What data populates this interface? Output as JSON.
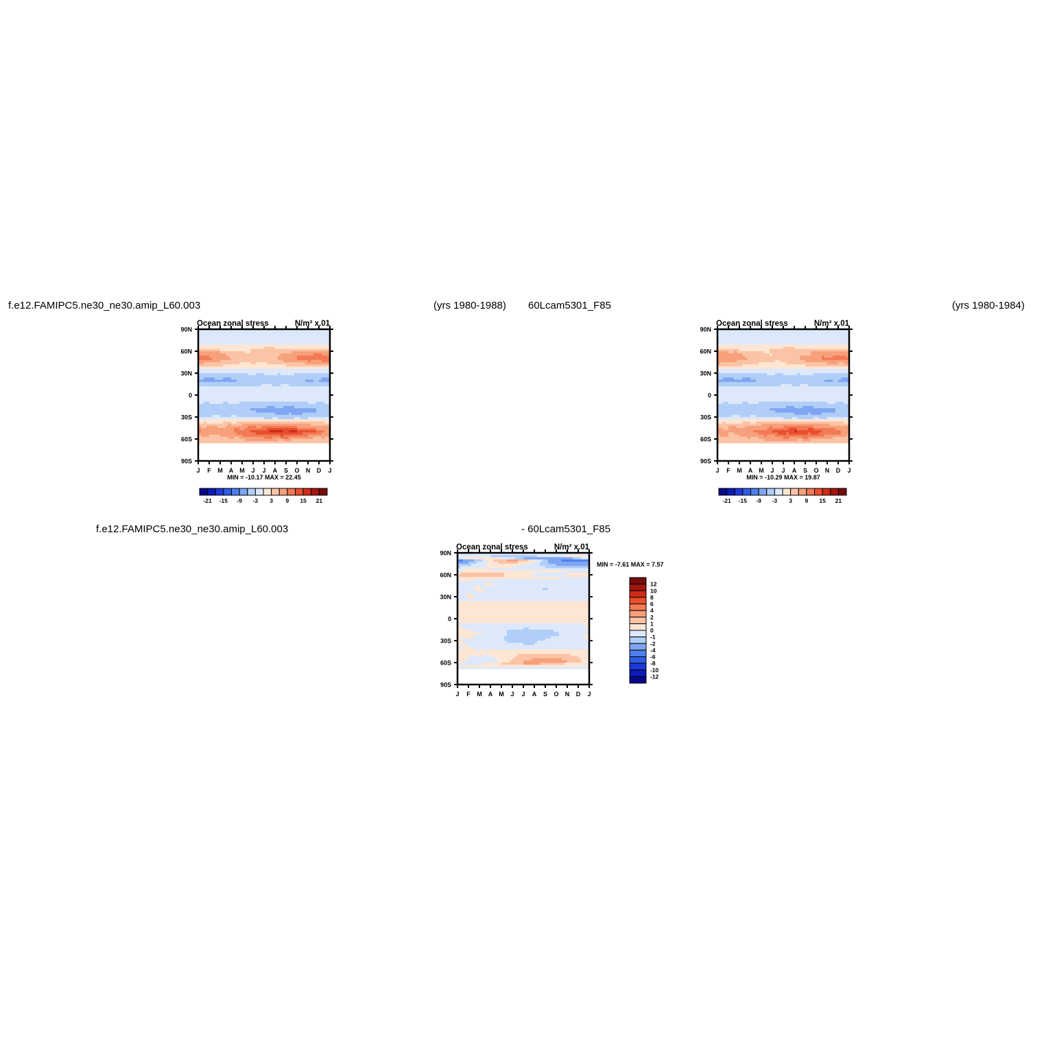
{
  "headers": {
    "left_case": "f.e12.FAMIPC5.ne30_ne30.amip_L60.003",
    "left_years": "(yrs 1980-1988)",
    "right_case": "60Lcam5301_F85",
    "right_years": "(yrs 1980-1984)",
    "diff_left": "f.e12.FAMIPC5.ne30_ne30.amip_L60.003",
    "diff_right": "- 60Lcam5301_F85"
  },
  "palette": {
    "diverging": [
      "#08088c",
      "#0b1bb8",
      "#1d39d9",
      "#2f5ce6",
      "#4f7eed",
      "#7ea6f2",
      "#b0cef7",
      "#dde9fb",
      "#fde6d4",
      "#fbc4a6",
      "#f7a07c",
      "#f27a54",
      "#e94f2d",
      "#cf2a17",
      "#a61510",
      "#760c0c"
    ]
  },
  "chart_data": [
    {
      "type": "heatmap",
      "title": "Ocean zonal stress",
      "units": "N/m² x.01",
      "x_tick_labels": [
        "J",
        "F",
        "M",
        "A",
        "M",
        "J",
        "J",
        "A",
        "S",
        "O",
        "N",
        "D",
        "J"
      ],
      "y_tick_labels": [
        "90N",
        "60N",
        "30N",
        "0",
        "30S",
        "60S",
        "90S"
      ],
      "ylim": [
        -90,
        90
      ],
      "min": -10.17,
      "max": 22.45,
      "stats_text": "MIN = -10.17 MAX = 22.45",
      "colorbar_levels": [
        -21,
        -18,
        -15,
        -12,
        -9,
        -6,
        -3,
        0,
        3,
        6,
        9,
        12,
        15,
        18,
        21
      ],
      "colorbar_labels": [
        "-21",
        "-15",
        "-9",
        "-3",
        "3",
        "9",
        "15",
        "21"
      ],
      "colorbar_orientation": "horizontal",
      "field": {
        "lats": [
          -90,
          -80,
          -70,
          -60,
          -50,
          -40,
          -30,
          -20,
          -10,
          0,
          10,
          20,
          30,
          40,
          50,
          60,
          70,
          80,
          90
        ],
        "amplitude": [
          0,
          0,
          2,
          6,
          12,
          6,
          -4,
          -6,
          -3,
          0,
          -2,
          -6,
          -3,
          3,
          8,
          5,
          -1,
          -1,
          0
        ],
        "annual_mod": [
          0,
          0,
          0,
          0.3,
          0.35,
          0.2,
          0.3,
          0.3,
          0.1,
          0,
          0.1,
          0.2,
          0.2,
          0.4,
          0.45,
          0.4,
          0.2,
          0,
          0
        ],
        "peak_month": [
          0,
          0,
          0,
          7,
          7.5,
          7,
          8,
          8,
          7,
          0,
          1,
          1,
          1,
          11,
          11,
          11,
          1,
          0,
          0
        ],
        "missing_south_of": -66
      }
    },
    {
      "type": "heatmap",
      "title": "Ocean zonal stress",
      "units": "N/m² x.01",
      "x_tick_labels": [
        "J",
        "F",
        "M",
        "A",
        "M",
        "J",
        "J",
        "A",
        "S",
        "O",
        "N",
        "D",
        "J"
      ],
      "y_tick_labels": [
        "90N",
        "60N",
        "30N",
        "0",
        "30S",
        "60S",
        "90S"
      ],
      "ylim": [
        -90,
        90
      ],
      "min": -10.29,
      "max": 19.87,
      "stats_text": "MIN = -10.29 MAX = 19.87",
      "colorbar_levels": [
        -21,
        -18,
        -15,
        -12,
        -9,
        -6,
        -3,
        0,
        3,
        6,
        9,
        12,
        15,
        18,
        21
      ],
      "colorbar_labels": [
        "-21",
        "-15",
        "-9",
        "-3",
        "3",
        "9",
        "15",
        "21"
      ],
      "colorbar_orientation": "horizontal",
      "field": {
        "lats": [
          -90,
          -80,
          -70,
          -60,
          -50,
          -40,
          -30,
          -20,
          -10,
          0,
          10,
          20,
          30,
          40,
          50,
          60,
          70,
          80,
          90
        ],
        "amplitude": [
          0,
          0,
          2,
          6,
          11,
          6,
          -4,
          -6,
          -3,
          0,
          -2,
          -6,
          -3,
          3,
          7,
          5,
          -1,
          -1,
          0
        ],
        "annual_mod": [
          0,
          0,
          0,
          0.3,
          0.35,
          0.2,
          0.3,
          0.3,
          0.1,
          0,
          0.1,
          0.2,
          0.2,
          0.4,
          0.45,
          0.4,
          0.2,
          0,
          0
        ],
        "peak_month": [
          0,
          0,
          0,
          7,
          7.5,
          7,
          8,
          8,
          7,
          0,
          1,
          1,
          1,
          11,
          11,
          11,
          1,
          0,
          0
        ],
        "missing_south_of": -66
      }
    },
    {
      "type": "heatmap",
      "title": "Ocean zonal stress",
      "units": "N/m² x.01",
      "x_tick_labels": [
        "J",
        "F",
        "M",
        "A",
        "M",
        "J",
        "J",
        "A",
        "S",
        "O",
        "N",
        "D",
        "J"
      ],
      "y_tick_labels": [
        "90N",
        "60N",
        "30N",
        "0",
        "30S",
        "60S",
        "90S"
      ],
      "ylim": [
        -90,
        90
      ],
      "min": -7.61,
      "max": 7.57,
      "stats_text": "MIN =  -7.61 MAX =   7.57",
      "colorbar_levels": [
        -12,
        -10,
        -8,
        -6,
        -4,
        -2,
        -1,
        0,
        1,
        2,
        4,
        6,
        8,
        10,
        12
      ],
      "colorbar_labels": [
        "12",
        "10",
        "8",
        "6",
        "4",
        "2",
        "1",
        "0",
        "-1",
        "-2",
        "-4",
        "-6",
        "-8",
        "-10",
        "-12"
      ],
      "colorbar_orientation": "vertical",
      "field": {
        "lats": [
          -90,
          -80,
          -70,
          -60,
          -50,
          -40,
          -30,
          -20,
          -10,
          0,
          10,
          20,
          30,
          40,
          50,
          60,
          70,
          80,
          90
        ],
        "amplitude": [
          0,
          0,
          -0.5,
          1.2,
          0.8,
          -0.4,
          -0.6,
          -0.8,
          -0.3,
          0.4,
          0.3,
          0.2,
          -0.3,
          -0.5,
          -0.4,
          0.8,
          -0.6,
          -1.5,
          0
        ],
        "annual_mod": [
          0,
          0,
          0,
          1.5,
          1,
          1,
          1,
          1.2,
          1,
          0.8,
          0.8,
          0.8,
          1,
          1,
          1,
          1.5,
          1.2,
          2.5,
          0
        ],
        "peak_month": [
          0,
          0,
          0,
          8,
          8,
          7,
          6,
          7,
          6,
          5,
          5,
          6,
          7,
          8,
          9,
          1,
          10,
          11,
          0
        ],
        "missing_south_of": -68
      }
    }
  ]
}
